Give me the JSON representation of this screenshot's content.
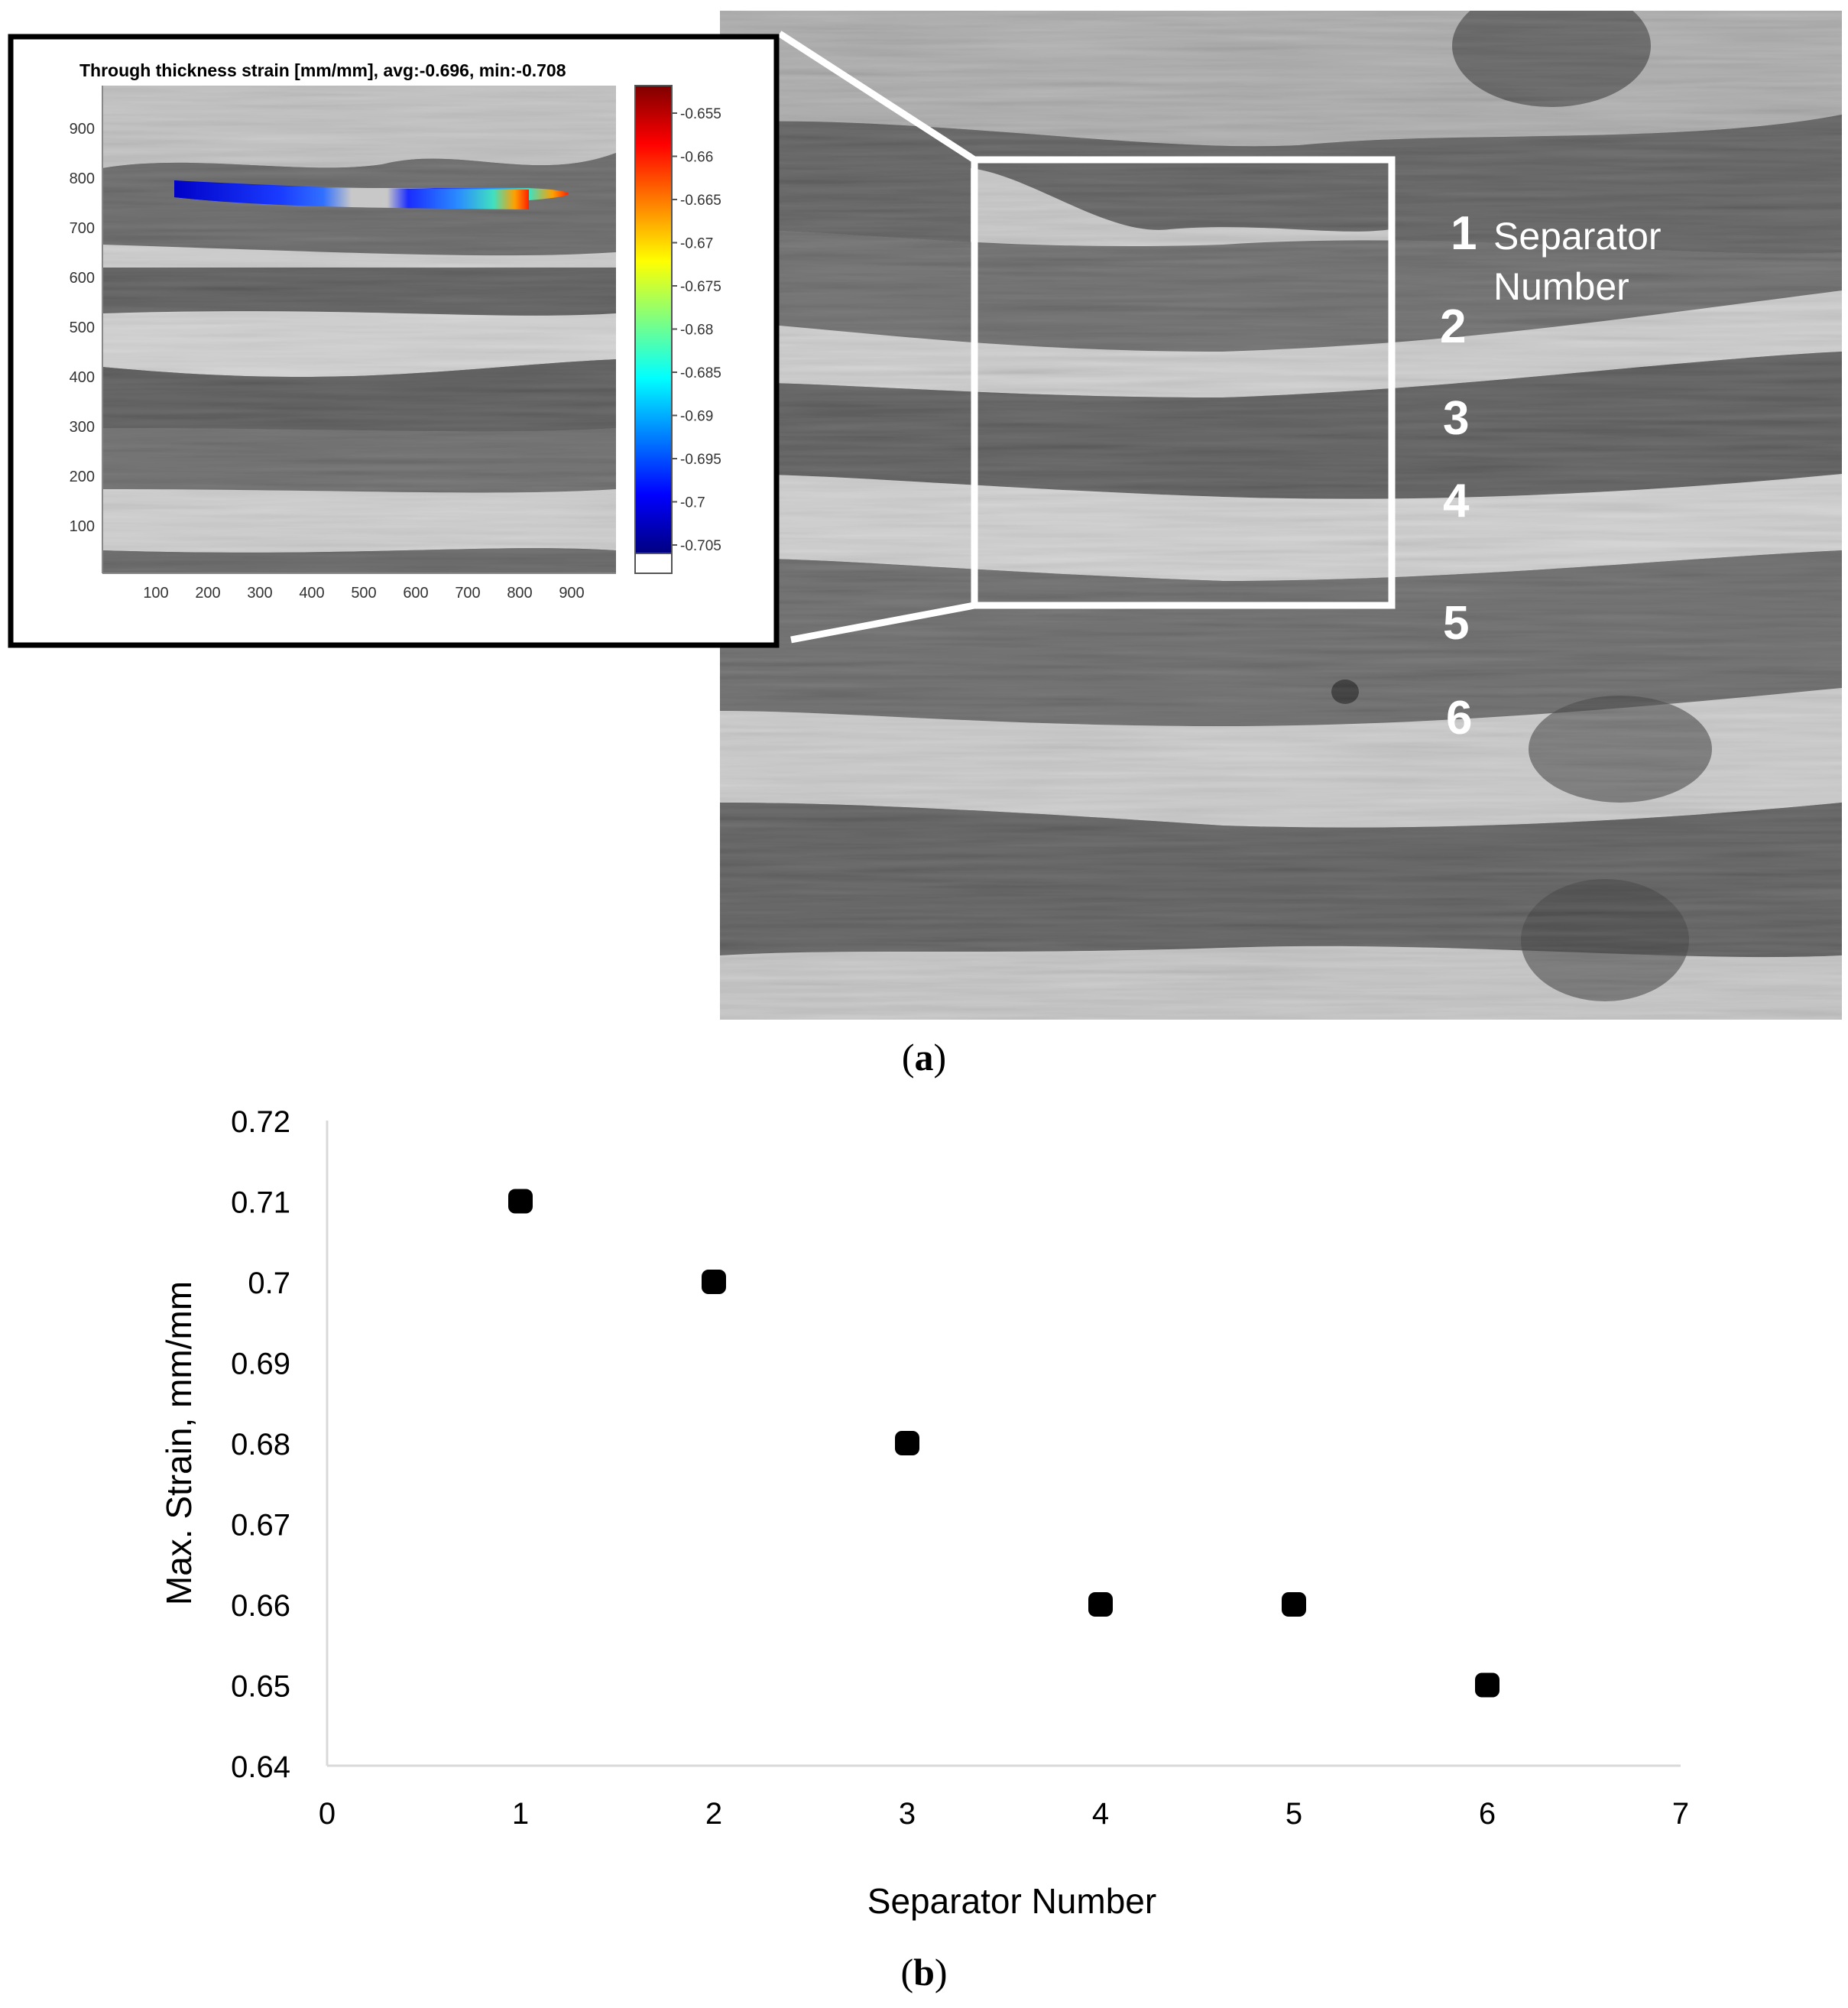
{
  "panel_a": {
    "caption_open": "(",
    "caption_letter": "a",
    "caption_close": ")",
    "inset": {
      "title": "Through thickness strain [mm/mm], avg:-0.696, min:-0.708",
      "y_ticks": [
        "900",
        "800",
        "700",
        "600",
        "500",
        "400",
        "300",
        "200",
        "100"
      ],
      "x_ticks": [
        "100",
        "200",
        "300",
        "400",
        "500",
        "600",
        "700",
        "800",
        "900"
      ],
      "colorbar_ticks": [
        "-0.655",
        "-0.66",
        "-0.665",
        "-0.67",
        "-0.675",
        "-0.68",
        "-0.685",
        "-0.69",
        "-0.695",
        "-0.7",
        "-0.705"
      ],
      "colormap": "jet"
    },
    "separator_labels": [
      "1",
      "2",
      "3",
      "4",
      "5",
      "6"
    ],
    "separator_caption_line1": "Separator",
    "separator_caption_line2": "Number"
  },
  "panel_b": {
    "caption_open": "(",
    "caption_letter": "b",
    "caption_close": ")"
  },
  "chart_data": {
    "type": "scatter",
    "x": [
      1,
      2,
      3,
      4,
      5,
      6
    ],
    "y": [
      0.71,
      0.7,
      0.68,
      0.66,
      0.66,
      0.65
    ],
    "xlabel": "Separator Number",
    "ylabel": "Max. Strain, mm/mm",
    "xlim": [
      0,
      7
    ],
    "ylim": [
      0.64,
      0.72
    ],
    "x_tick_labels": [
      "0",
      "1",
      "2",
      "3",
      "4",
      "5",
      "6",
      "7"
    ],
    "y_tick_labels": [
      "0.64",
      "0.65",
      "0.66",
      "0.67",
      "0.68",
      "0.69",
      "0.7",
      "0.71",
      "0.72"
    ],
    "marker_color": "#000000",
    "grid": false,
    "legend": "none"
  }
}
